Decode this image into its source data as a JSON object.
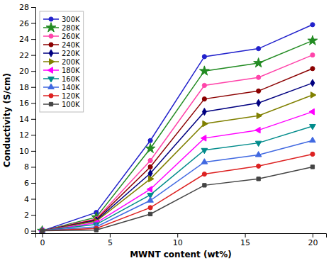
{
  "chart_data": {
    "type": "line",
    "xlabel": "MWNT content (wt%)",
    "ylabel": "Conductivity (S/cm)",
    "x": [
      0,
      4,
      8,
      12,
      16,
      20
    ],
    "xlim": [
      -0.5,
      21
    ],
    "ylim": [
      -0.3,
      28
    ],
    "xticks": [
      0,
      5,
      10,
      15,
      20
    ],
    "yticks": [
      0,
      2,
      4,
      6,
      8,
      10,
      12,
      14,
      16,
      18,
      20,
      22,
      24,
      26,
      28
    ],
    "grid": false,
    "legend": "upper left",
    "series": [
      {
        "name": "300K",
        "color": "#2222cc",
        "marker": "circle",
        "values": [
          0.0,
          2.3,
          11.3,
          21.8,
          22.8,
          25.8
        ]
      },
      {
        "name": "280K",
        "color": "#228B22",
        "marker": "star",
        "values": [
          0.0,
          1.7,
          10.3,
          20.0,
          21.0,
          23.8
        ]
      },
      {
        "name": "260K",
        "color": "#ff44aa",
        "marker": "circle",
        "values": [
          0.0,
          1.5,
          8.8,
          18.2,
          19.2,
          22.0
        ]
      },
      {
        "name": "240K",
        "color": "#8B0000",
        "marker": "circle",
        "values": [
          0.0,
          1.4,
          8.0,
          16.5,
          17.5,
          20.3
        ]
      },
      {
        "name": "220K",
        "color": "#000080",
        "marker": "diamond",
        "values": [
          0.0,
          1.3,
          7.2,
          14.9,
          16.0,
          18.5
        ]
      },
      {
        "name": "200K",
        "color": "#808000",
        "marker": "triangle-right",
        "values": [
          0.0,
          1.2,
          6.5,
          13.4,
          14.4,
          17.0
        ]
      },
      {
        "name": "180K",
        "color": "#ff00ff",
        "marker": "triangle-left",
        "values": [
          0.0,
          1.0,
          5.2,
          11.6,
          12.6,
          14.9
        ]
      },
      {
        "name": "160K",
        "color": "#008B8B",
        "marker": "triangle-down",
        "values": [
          0.0,
          0.8,
          4.5,
          10.1,
          11.0,
          13.1
        ]
      },
      {
        "name": "140K",
        "color": "#4169E1",
        "marker": "triangle-up",
        "values": [
          0.0,
          0.5,
          3.8,
          8.6,
          9.5,
          11.3
        ]
      },
      {
        "name": "120K",
        "color": "#dd2222",
        "marker": "circle",
        "values": [
          0.0,
          0.3,
          2.9,
          7.1,
          8.1,
          9.6
        ]
      },
      {
        "name": "100K",
        "color": "#444444",
        "marker": "square",
        "values": [
          0.0,
          0.1,
          2.1,
          5.7,
          6.5,
          8.0
        ]
      }
    ]
  }
}
